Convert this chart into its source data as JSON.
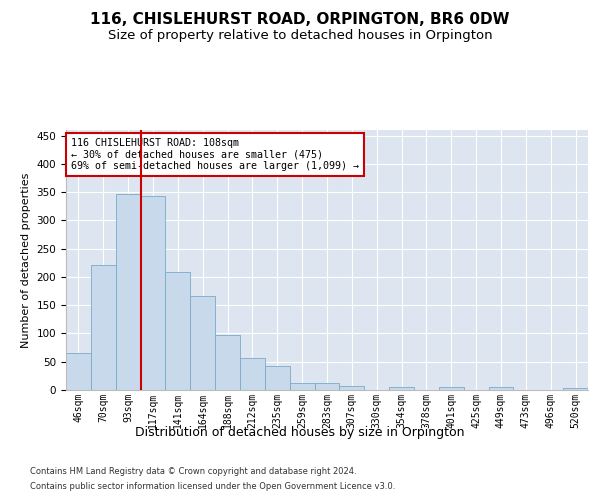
{
  "title": "116, CHISLEHURST ROAD, ORPINGTON, BR6 0DW",
  "subtitle": "Size of property relative to detached houses in Orpington",
  "xlabel": "Distribution of detached houses by size in Orpington",
  "ylabel": "Number of detached properties",
  "bar_labels": [
    "46sqm",
    "70sqm",
    "93sqm",
    "117sqm",
    "141sqm",
    "164sqm",
    "188sqm",
    "212sqm",
    "235sqm",
    "259sqm",
    "283sqm",
    "307sqm",
    "330sqm",
    "354sqm",
    "378sqm",
    "401sqm",
    "425sqm",
    "449sqm",
    "473sqm",
    "496sqm",
    "520sqm"
  ],
  "bar_values": [
    65,
    221,
    346,
    344,
    208,
    167,
    97,
    56,
    43,
    13,
    13,
    7,
    0,
    6,
    0,
    5,
    0,
    5,
    0,
    0,
    3
  ],
  "bar_color": "#c9d9ec",
  "bar_edge_color": "#7aaac8",
  "vline_x": 2.5,
  "vline_color": "#cc0000",
  "annotation_text": "116 CHISLEHURST ROAD: 108sqm\n← 30% of detached houses are smaller (475)\n69% of semi-detached houses are larger (1,099) →",
  "annotation_box_color": "#cc0000",
  "ylim": [
    0,
    460
  ],
  "yticks": [
    0,
    50,
    100,
    150,
    200,
    250,
    300,
    350,
    400,
    450
  ],
  "bg_color": "#dde6f0",
  "footer_line1": "Contains HM Land Registry data © Crown copyright and database right 2024.",
  "footer_line2": "Contains public sector information licensed under the Open Government Licence v3.0.",
  "title_fontsize": 11,
  "subtitle_fontsize": 9.5,
  "xlabel_fontsize": 9,
  "ylabel_fontsize": 8
}
